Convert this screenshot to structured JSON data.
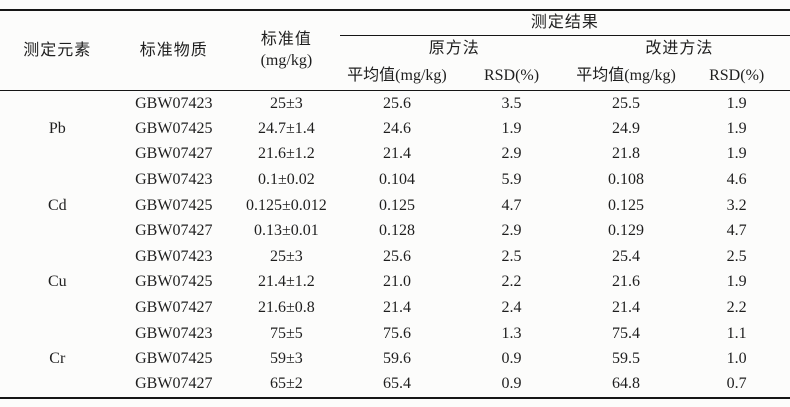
{
  "page": {
    "background": "#fcfcfb",
    "text_color": "#1e1e1e",
    "rule_color": "#161616"
  },
  "table": {
    "header": {
      "element": "测定元素",
      "material": "标准物质",
      "standard_line1": "标准值",
      "standard_line2": "(mg/kg)",
      "results": "测定结果",
      "method_original": "原方法",
      "method_improved": "改进方法",
      "mean_original": "平均值(mg/kg)",
      "rsd_original": "RSD(%)",
      "mean_improved": "平均值(mg/kg)",
      "rsd_improved": "RSD(%)"
    },
    "groups": [
      {
        "element": "Pb",
        "rows": [
          {
            "material": "GBW07423",
            "standard": "25±3",
            "orig_mean": "25.6",
            "orig_rsd": "3.5",
            "impr_mean": "25.5",
            "impr_rsd": "1.9"
          },
          {
            "material": "GBW07425",
            "standard": "24.7±1.4",
            "orig_mean": "24.6",
            "orig_rsd": "1.9",
            "impr_mean": "24.9",
            "impr_rsd": "1.9"
          },
          {
            "material": "GBW07427",
            "standard": "21.6±1.2",
            "orig_mean": "21.4",
            "orig_rsd": "2.9",
            "impr_mean": "21.8",
            "impr_rsd": "1.9"
          }
        ]
      },
      {
        "element": "Cd",
        "rows": [
          {
            "material": "GBW07423",
            "standard": "0.1±0.02",
            "orig_mean": "0.104",
            "orig_rsd": "5.9",
            "impr_mean": "0.108",
            "impr_rsd": "4.6"
          },
          {
            "material": "GBW07425",
            "standard": "0.125±0.012",
            "orig_mean": "0.125",
            "orig_rsd": "4.7",
            "impr_mean": "0.125",
            "impr_rsd": "3.2"
          },
          {
            "material": "GBW07427",
            "standard": "0.13±0.01",
            "orig_mean": "0.128",
            "orig_rsd": "2.9",
            "impr_mean": "0.129",
            "impr_rsd": "4.7"
          }
        ]
      },
      {
        "element": "Cu",
        "rows": [
          {
            "material": "GBW07423",
            "standard": "25±3",
            "orig_mean": "25.6",
            "orig_rsd": "2.5",
            "impr_mean": "25.4",
            "impr_rsd": "2.5"
          },
          {
            "material": "GBW07425",
            "standard": "21.4±1.2",
            "orig_mean": "21.0",
            "orig_rsd": "2.2",
            "impr_mean": "21.6",
            "impr_rsd": "1.9"
          },
          {
            "material": "GBW07427",
            "standard": "21.6±0.8",
            "orig_mean": "21.4",
            "orig_rsd": "2.4",
            "impr_mean": "21.4",
            "impr_rsd": "2.2"
          }
        ]
      },
      {
        "element": "Cr",
        "rows": [
          {
            "material": "GBW07423",
            "standard": "75±5",
            "orig_mean": "75.6",
            "orig_rsd": "1.3",
            "impr_mean": "75.4",
            "impr_rsd": "1.1"
          },
          {
            "material": "GBW07425",
            "standard": "59±3",
            "orig_mean": "59.6",
            "orig_rsd": "0.9",
            "impr_mean": "59.5",
            "impr_rsd": "1.0"
          },
          {
            "material": "GBW07427",
            "standard": "65±2",
            "orig_mean": "65.4",
            "orig_rsd": "0.9",
            "impr_mean": "64.8",
            "impr_rsd": "0.7"
          }
        ]
      }
    ]
  }
}
